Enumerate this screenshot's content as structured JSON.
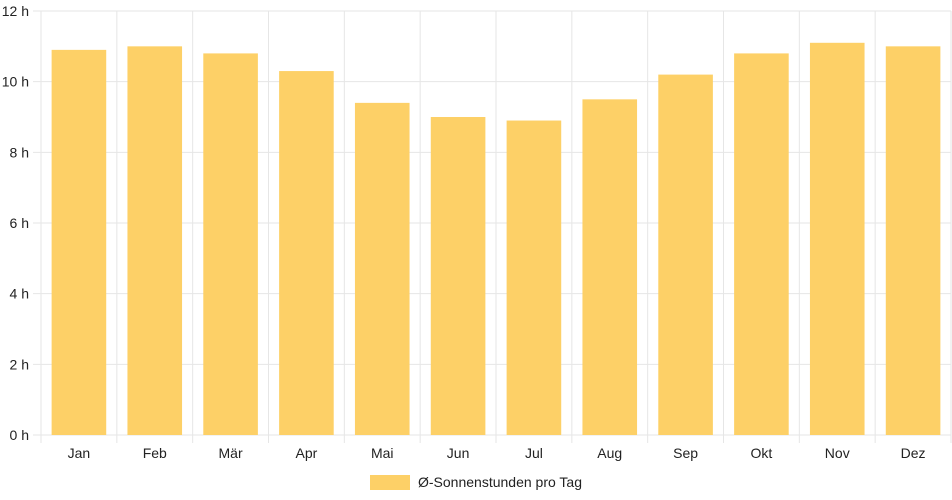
{
  "chart_data": {
    "type": "bar",
    "categories": [
      "Jan",
      "Feb",
      "Mär",
      "Apr",
      "Mai",
      "Jun",
      "Jul",
      "Aug",
      "Sep",
      "Okt",
      "Nov",
      "Dez"
    ],
    "series": [
      {
        "name": "Ø-Sonnenstunden pro Tag",
        "values": [
          10.9,
          11.0,
          10.8,
          10.3,
          9.4,
          9.0,
          8.9,
          9.5,
          10.2,
          10.8,
          11.1,
          11.0
        ],
        "color": "#fdd067"
      }
    ],
    "y_ticks": [
      "0 h",
      "2 h",
      "4 h",
      "6 h",
      "8 h",
      "10 h",
      "12 h"
    ],
    "ylim": [
      0,
      12
    ],
    "grid": true,
    "legend_position": "bottom"
  }
}
